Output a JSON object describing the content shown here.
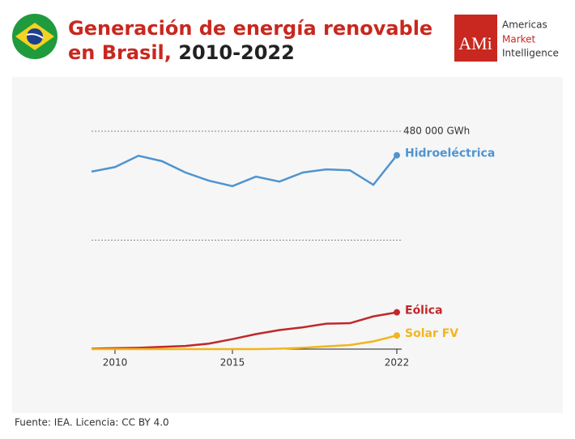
{
  "header": {
    "title_line1": "Generación de energía renovable",
    "title_line2": "en Brasil,",
    "title_period": "2010-2022"
  },
  "logo": {
    "mark": "AMi",
    "line1": "Americas",
    "line2": "Market",
    "line3": "Intelligence"
  },
  "chart_data": {
    "type": "line",
    "x": [
      2009,
      2010,
      2011,
      2012,
      2013,
      2014,
      2015,
      2016,
      2017,
      2018,
      2019,
      2020,
      2021,
      2022
    ],
    "xlim": [
      2009,
      2022
    ],
    "xticks": [
      2010,
      2015,
      2022
    ],
    "ylim": [
      0,
      480000
    ],
    "yticks": [
      {
        "value": 480000,
        "label": "480 000 GWh"
      }
    ],
    "grid_lines": [
      240000
    ],
    "series": [
      {
        "name": "Hidroeléctrica",
        "color": "#4f94d0",
        "values": [
          391000,
          401000,
          426000,
          414000,
          389000,
          371000,
          359000,
          380000,
          369000,
          389000,
          396000,
          394000,
          362000,
          427000
        ]
      },
      {
        "name": "Eólica",
        "color": "#c0282a",
        "values": [
          1000,
          2000,
          3000,
          5000,
          7000,
          12000,
          22000,
          33000,
          42000,
          48000,
          56000,
          57000,
          72000,
          81000
        ]
      },
      {
        "name": "Solar FV",
        "color": "#f2b51b",
        "values": [
          0,
          0,
          0,
          0,
          0,
          0,
          0,
          0,
          1000,
          3000,
          6000,
          9000,
          17000,
          30000
        ]
      }
    ]
  },
  "footer": {
    "source": "Fuente: IEA. Licencia: CC BY 4.0"
  }
}
